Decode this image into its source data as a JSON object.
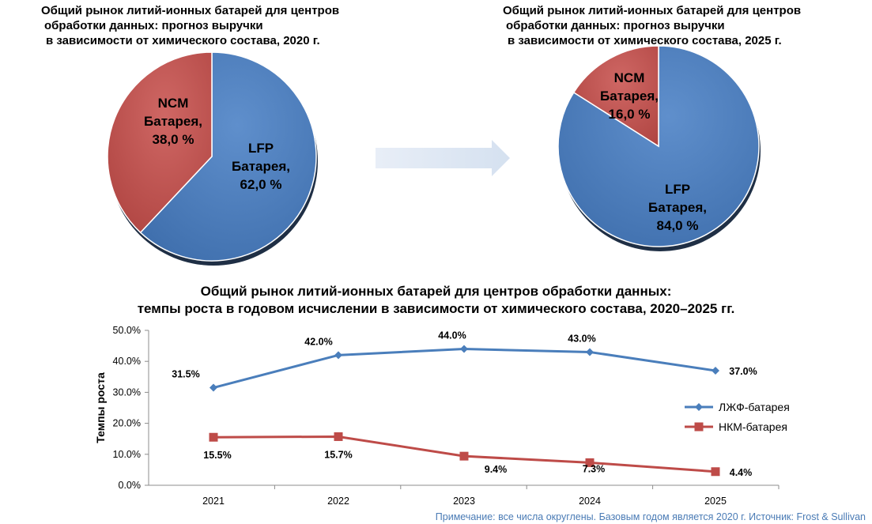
{
  "chart_data": [
    {
      "type": "pie",
      "title_lines": [
        "Общий рынок литий-ионных батарей для центров",
        "обработки данных: прогноз выручки",
        "в зависимости от химического состава, 2020 г."
      ],
      "slices": [
        {
          "label_lines": [
            "LFP",
            "Батарея,",
            "62,0 %"
          ],
          "value": 62.0,
          "color": "#4f81bd"
        },
        {
          "label_lines": [
            "NCM",
            "Батарея,",
            "38,0 %"
          ],
          "value": 38.0,
          "color": "#c0504d"
        }
      ]
    },
    {
      "type": "pie",
      "title_lines": [
        "Общий рынок литий-ионных батарей для центров",
        "обработки данных: прогноз выручки",
        "в зависимости от химического состава, 2025 г."
      ],
      "slices": [
        {
          "label_lines": [
            "LFP",
            "Батарея,",
            "84,0 %"
          ],
          "value": 84.0,
          "color": "#4f81bd"
        },
        {
          "label_lines": [
            "NCM",
            "Батарея,",
            "16,0 %"
          ],
          "value": 16.0,
          "color": "#c0504d"
        }
      ]
    },
    {
      "type": "line",
      "title_lines": [
        "Общий рынок литий-ионных батарей для центров обработки данных:",
        "темпы роста в годовом исчислении в зависимости от химического состава, 2020–2025 гг."
      ],
      "ylabel": "Темпы роста",
      "categories": [
        "2021",
        "2022",
        "2023",
        "2024",
        "2025"
      ],
      "ylim": [
        0,
        50
      ],
      "yticks": [
        "0.0%",
        "10.0%",
        "20.0%",
        "30.0%",
        "40.0%",
        "50.0%"
      ],
      "legend_position": "right",
      "series": [
        {
          "name": "ЛЖФ-батарея",
          "values": [
            31.5,
            42.0,
            44.0,
            43.0,
            37.0
          ],
          "labels": [
            "31.5%",
            "42.0%",
            "44.0%",
            "43.0%",
            "37.0%"
          ],
          "color": "#4a7ebb",
          "marker": "diamond"
        },
        {
          "name": "НКМ-батарея",
          "values": [
            15.5,
            15.7,
            9.4,
            7.3,
            4.4
          ],
          "labels": [
            "15.5%",
            "15.7%",
            "9.4%",
            "7.3%",
            "4.4%"
          ],
          "color": "#be4b48",
          "marker": "square"
        }
      ]
    }
  ],
  "note": "Примечание: все числа округлены. Базовым годом является 2020 г. Источник: Frost & Sullivan"
}
